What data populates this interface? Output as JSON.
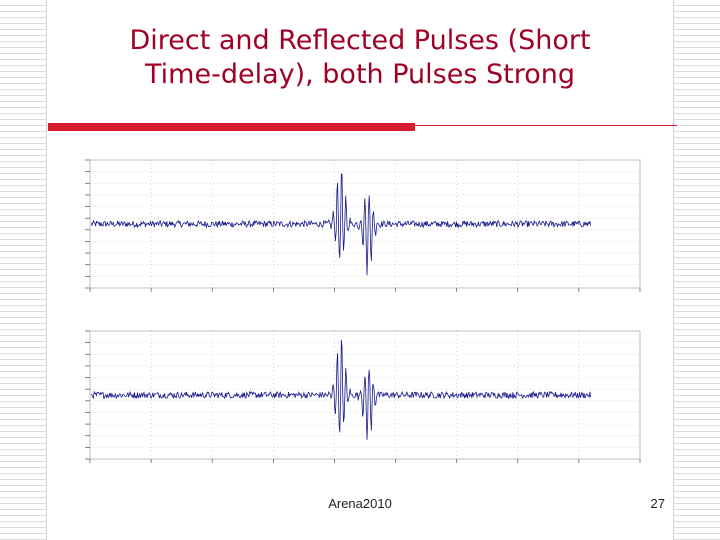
{
  "slide": {
    "title_line1": "Direct and Reflected Pulses (Short",
    "title_line2": "Time-delay), both Pulses Strong",
    "footer_text": "Arena2010",
    "page_number": "27",
    "title_color": "#a00026",
    "accent_color": "#d81e2e"
  },
  "chart_data": [
    {
      "type": "line",
      "title": "",
      "xlabel": "",
      "ylabel": "",
      "xlim": [
        0,
        900
      ],
      "ylim": [
        -1,
        1
      ],
      "grid": true,
      "series": [
        {
          "color": "#1a1a8c",
          "noise_level": 0.05,
          "x_end": 820,
          "pulses": [
            {
              "x": 410,
              "peak": 0.95,
              "trough": -0.6
            },
            {
              "x": 455,
              "peak": 0.5,
              "trough": -0.85
            }
          ]
        }
      ]
    },
    {
      "type": "line",
      "title": "",
      "xlabel": "",
      "ylabel": "",
      "xlim": [
        0,
        900
      ],
      "ylim": [
        -1,
        1
      ],
      "grid": true,
      "series": [
        {
          "color": "#1a1a8c",
          "noise_level": 0.05,
          "x_end": 820,
          "pulses": [
            {
              "x": 410,
              "peak": 0.95,
              "trough": -0.65
            },
            {
              "x": 455,
              "peak": 0.45,
              "trough": -0.75
            }
          ]
        }
      ]
    }
  ]
}
